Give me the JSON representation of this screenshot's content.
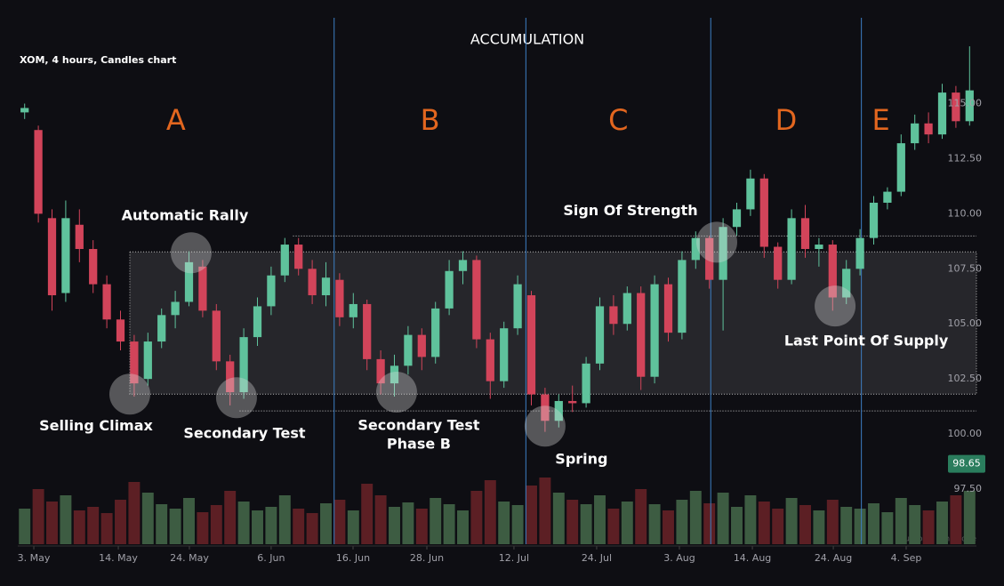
{
  "chart_data": {
    "type": "candlestick",
    "title": "ACCUMULATION",
    "subtitle": "XOM, 4 hours, Candles chart",
    "footnote": "Your local time zone",
    "up_color": "#5fc29c",
    "down_color": "#d2445a",
    "volume_up_color": "#3d5c42",
    "volume_down_color": "#5c1f24",
    "xlim": [
      0,
      70
    ],
    "xticks": [
      {
        "value": 1.17,
        "label": "3. May"
      },
      {
        "value": 7.34,
        "label": "14. May"
      },
      {
        "value": 12.53,
        "label": "24. May"
      },
      {
        "value": 18.5,
        "label": "6. Jun"
      },
      {
        "value": 24.48,
        "label": "16. Jun"
      },
      {
        "value": 29.87,
        "label": "28. Jun"
      },
      {
        "value": 36.23,
        "label": "12. Jul"
      },
      {
        "value": 42.27,
        "label": "24. Jul"
      },
      {
        "value": 48.31,
        "label": "3. Aug"
      },
      {
        "value": 53.64,
        "label": "14. Aug"
      },
      {
        "value": 59.55,
        "label": "24. Aug"
      },
      {
        "value": 64.87,
        "label": "4. Sep"
      }
    ],
    "ylim": [
      95,
      119.5
    ],
    "yticks": [
      {
        "value": 97.5,
        "label": "97.50"
      },
      {
        "value": 100,
        "label": "100.00"
      },
      {
        "value": 102.5,
        "label": "102.50"
      },
      {
        "value": 105,
        "label": "105.00"
      },
      {
        "value": 107.5,
        "label": "107.50"
      },
      {
        "value": 110,
        "label": "110.00"
      },
      {
        "value": 112.5,
        "label": "112.50"
      },
      {
        "value": 115,
        "label": "115.00"
      }
    ],
    "last_price": 98.65,
    "open": [
      114.6,
      113.8,
      109.8,
      106.4,
      109.5,
      108.4,
      106.8,
      105.2,
      104.2,
      102.5,
      104.2,
      105.4,
      106.0,
      107.6,
      105.6,
      103.3,
      101.9,
      104.4,
      105.8,
      107.2,
      108.6,
      107.5,
      106.3,
      107.0,
      105.3,
      105.9,
      103.4,
      102.3,
      103.1,
      104.5,
      103.5,
      105.7,
      107.4,
      107.9,
      104.3,
      102.4,
      104.8,
      106.3,
      101.8,
      100.6,
      101.5,
      101.4,
      103.2,
      105.8,
      105.0,
      106.4,
      102.6,
      106.8,
      104.6,
      107.9,
      108.9,
      107.0,
      109.4,
      110.2,
      111.6,
      108.5,
      107.0,
      109.8,
      108.4,
      108.6,
      106.2,
      107.5,
      108.9,
      110.5,
      111.0,
      113.2,
      114.1,
      113.6,
      115.5,
      114.2
    ],
    "high": [
      115.0,
      114.0,
      110.2,
      110.6,
      110.2,
      108.8,
      107.2,
      105.6,
      104.5,
      104.6,
      105.7,
      106.5,
      108.3,
      107.9,
      105.9,
      103.6,
      104.8,
      106.2,
      107.6,
      108.9,
      108.9,
      107.9,
      107.8,
      107.3,
      106.4,
      106.1,
      103.8,
      103.6,
      104.9,
      104.8,
      106.0,
      107.9,
      108.3,
      108.1,
      104.6,
      105.1,
      107.2,
      106.5,
      102.1,
      101.8,
      102.2,
      103.5,
      106.2,
      106.3,
      106.7,
      106.7,
      107.2,
      107.1,
      108.3,
      109.2,
      109.0,
      109.8,
      110.5,
      112.0,
      111.8,
      108.7,
      110.2,
      110.4,
      108.9,
      108.8,
      107.9,
      109.3,
      110.8,
      111.2,
      113.6,
      114.5,
      114.6,
      115.9,
      115.8,
      117.6
    ],
    "low": [
      114.3,
      109.6,
      105.6,
      106.0,
      107.8,
      106.4,
      104.8,
      103.8,
      101.7,
      102.2,
      103.9,
      104.8,
      105.8,
      105.3,
      102.9,
      101.3,
      101.6,
      104.0,
      105.4,
      106.9,
      107.2,
      105.9,
      105.8,
      104.9,
      104.8,
      102.9,
      101.8,
      101.7,
      102.7,
      102.9,
      103.2,
      105.4,
      106.8,
      103.9,
      101.6,
      102.1,
      104.5,
      101.3,
      100.1,
      100.3,
      101.0,
      101.2,
      102.9,
      104.5,
      104.7,
      102.0,
      102.3,
      104.2,
      104.3,
      107.5,
      106.6,
      104.7,
      109.0,
      109.9,
      108.0,
      106.6,
      106.8,
      108.0,
      107.6,
      105.6,
      105.9,
      107.2,
      108.6,
      110.2,
      110.8,
      112.9,
      113.2,
      113.4,
      113.9,
      114.0
    ],
    "close": [
      114.8,
      110.0,
      106.3,
      109.8,
      108.4,
      106.8,
      105.2,
      104.2,
      102.3,
      104.2,
      105.4,
      106.0,
      107.8,
      105.6,
      103.3,
      101.9,
      104.4,
      105.8,
      107.2,
      108.6,
      107.5,
      106.3,
      107.1,
      105.3,
      105.9,
      103.4,
      102.3,
      103.1,
      104.5,
      103.5,
      105.7,
      107.4,
      107.9,
      104.3,
      102.4,
      104.8,
      106.8,
      101.8,
      100.6,
      101.5,
      101.4,
      103.2,
      105.8,
      105.0,
      106.4,
      102.6,
      106.8,
      104.6,
      107.9,
      108.9,
      107.0,
      109.4,
      110.2,
      111.6,
      108.5,
      107.0,
      109.8,
      108.4,
      108.6,
      106.2,
      107.5,
      108.9,
      110.5,
      111.0,
      113.2,
      114.1,
      113.6,
      115.5,
      114.2,
      115.6
    ],
    "volume": [
      40,
      62,
      48,
      55,
      38,
      42,
      35,
      50,
      70,
      58,
      45,
      40,
      52,
      36,
      44,
      60,
      48,
      38,
      42,
      55,
      40,
      35,
      46,
      50,
      38,
      68,
      55,
      42,
      47,
      40,
      52,
      45,
      38,
      60,
      72,
      48,
      44,
      66,
      75,
      58,
      50,
      45,
      55,
      40,
      48,
      62,
      45,
      38,
      50,
      60,
      46,
      58,
      42,
      55,
      48,
      40,
      52,
      44,
      38,
      50,
      42,
      40,
      46,
      36,
      52,
      44,
      38,
      48,
      55,
      60
    ],
    "trading_range": {
      "from": 8.18,
      "low": 101.81,
      "high": 108.27
    },
    "levels": [
      {
        "value": 108.99,
        "from": 20.1
      },
      {
        "value": 101.05,
        "from": 16.2
      }
    ],
    "phase_dividers": [
      23.1,
      37.1,
      50.6,
      61.6
    ],
    "phase_labels": [
      "A",
      "B",
      "C",
      "D",
      "E"
    ],
    "annotations": [
      {
        "lines": [
          "Selling Climax"
        ],
        "x": 8.18,
        "y": 101.81
      },
      {
        "lines": [
          "Automatic Rally"
        ],
        "x": 12.66,
        "y": 108.23
      },
      {
        "lines": [
          "Secondary Test"
        ],
        "x": 15.97,
        "y": 101.65
      },
      {
        "lines": [
          "Secondary Test",
          "Phase B"
        ],
        "x": 27.66,
        "y": 101.9
      },
      {
        "lines": [
          "Spring"
        ],
        "x": 38.5,
        "y": 100.36
      },
      {
        "lines": [
          "Sign Of Strength"
        ],
        "x": 51.04,
        "y": 108.71
      },
      {
        "lines": [
          "Last Point Of Supply"
        ],
        "x": 59.68,
        "y": 105.81
      }
    ]
  }
}
